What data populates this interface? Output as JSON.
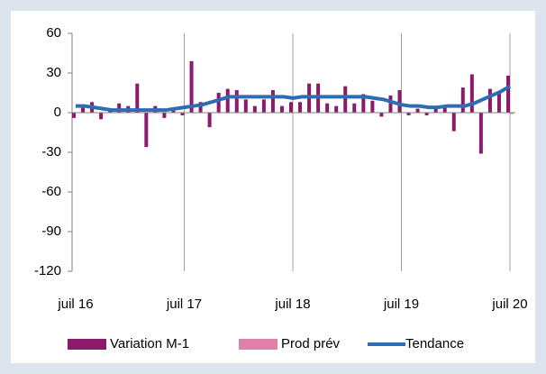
{
  "chart_data": {
    "type": "bar",
    "categories": [
      "juil 16",
      null,
      null,
      null,
      null,
      null,
      null,
      null,
      null,
      null,
      null,
      null,
      "juil 17",
      null,
      null,
      null,
      null,
      null,
      null,
      null,
      null,
      null,
      null,
      null,
      "juil 18",
      null,
      null,
      null,
      null,
      null,
      null,
      null,
      null,
      null,
      null,
      null,
      "juil 19",
      null,
      null,
      null,
      null,
      null,
      null,
      null,
      null,
      null,
      null,
      null,
      "juil 20"
    ],
    "series": [
      {
        "name": "Variation M-1",
        "type": "bar",
        "color": "#8b1a6b",
        "values": [
          -4,
          5,
          8,
          -5,
          2,
          7,
          5,
          22,
          -26,
          5,
          -4,
          3,
          -2,
          39,
          8,
          -11,
          15,
          18,
          17,
          10,
          5,
          10,
          17,
          5,
          8,
          8,
          22,
          22,
          7,
          5,
          20,
          7,
          14,
          9,
          -3,
          13,
          17,
          -2,
          3,
          -2,
          3,
          5,
          -14,
          19,
          29,
          -31,
          18,
          15,
          28
        ]
      },
      {
        "name": "Prod prév",
        "type": "bar",
        "color": "#e07fa8",
        "values": [
          null,
          null,
          null,
          null,
          null,
          null,
          null,
          null,
          null,
          null,
          null,
          null,
          null,
          null,
          null,
          null,
          null,
          null,
          null,
          null,
          null,
          null,
          null,
          null,
          null,
          null,
          null,
          null,
          null,
          null,
          null,
          null,
          null,
          null,
          null,
          null,
          null,
          null,
          null,
          null,
          null,
          null,
          null,
          null,
          null,
          null,
          null,
          null,
          -1
        ]
      },
      {
        "name": "Tendance",
        "type": "line",
        "color": "#2e6db4",
        "values": [
          5,
          5,
          4,
          3,
          2,
          2,
          2,
          2,
          2,
          2,
          2,
          3,
          4,
          5,
          6,
          8,
          10,
          12,
          12,
          12,
          12,
          12,
          12,
          12,
          11,
          12,
          12,
          12,
          12,
          12,
          12,
          12,
          12,
          11,
          10,
          8,
          6,
          5,
          5,
          4,
          4,
          5,
          5,
          5,
          7,
          10,
          13,
          16,
          20
        ]
      }
    ],
    "ylim": [
      -120,
      60
    ],
    "yticks": [
      -120,
      -90,
      -60,
      -30,
      0,
      30,
      60
    ],
    "grid": false,
    "legend": "bottom"
  }
}
